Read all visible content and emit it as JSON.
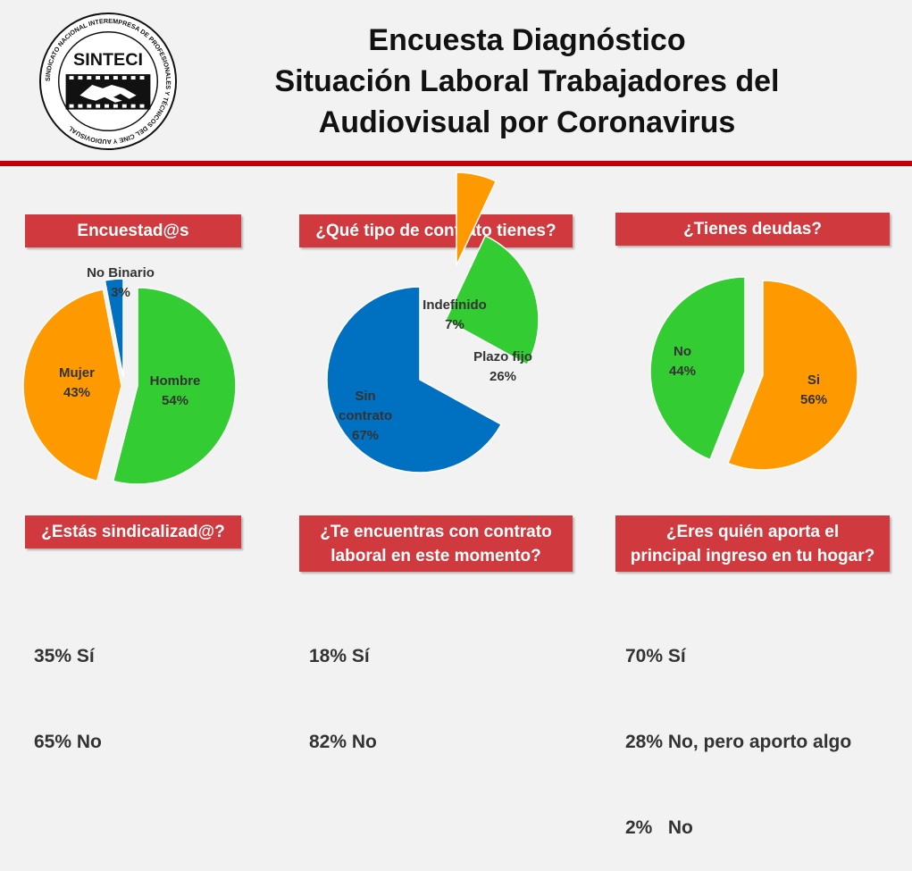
{
  "logo": {
    "name": "SINTECI",
    "ring_text": "SINDICATO NACIONAL INTEREMPRESA DE PROFESIONALES Y TÉCNICOS DEL CINE Y AUDIOVISUAL",
    "icon": "handshake-film-icon"
  },
  "title": {
    "line1": "Encuesta Diagnóstico",
    "line2": "Situación Laboral Trabajadores del",
    "line3": "Audiovisual por Coronavirus"
  },
  "colors": {
    "accent": "#c0000a",
    "header_box": "#d0393e",
    "green": "#33cc33",
    "orange": "#ff9900",
    "blue": "#0070c0"
  },
  "chart_data": [
    {
      "type": "pie",
      "title": "Encuestad@s",
      "categories": [
        "Hombre",
        "Mujer",
        "No Binario"
      ],
      "values": [
        54,
        43,
        3
      ],
      "label_texts": [
        "54%",
        "43%",
        "3%"
      ],
      "colors": [
        "#33cc33",
        "#ff9900",
        "#0070c0"
      ],
      "exploded": true
    },
    {
      "type": "pie",
      "title": "¿Qué tipo de contrato tienes?",
      "categories": [
        "Indefinido",
        "Plazo fijo",
        "Sin contrato"
      ],
      "values": [
        7,
        26,
        67
      ],
      "label_texts": [
        "7%",
        "26%",
        "67%"
      ],
      "colors": [
        "#ff9900",
        "#33cc33",
        "#0070c0"
      ],
      "exploded": true
    },
    {
      "type": "pie",
      "title": "¿Tienes deudas?",
      "categories": [
        "Si",
        "No"
      ],
      "values": [
        56,
        44
      ],
      "label_texts": [
        "56%",
        "44%"
      ],
      "colors": [
        "#ff9900",
        "#33cc33"
      ],
      "exploded": true
    }
  ],
  "questions": [
    {
      "title_lines": [
        "¿Estás sindicalizad@?"
      ],
      "answers": [
        "35% Sí",
        "65% No"
      ]
    },
    {
      "title_lines": [
        "¿Te encuentras con contrato",
        "laboral en este momento?"
      ],
      "answers": [
        "18% Sí",
        "82% No"
      ]
    },
    {
      "title_lines": [
        "¿Eres quién aporta el",
        "principal ingreso en tu hogar?"
      ],
      "answers": [
        "70% Sí",
        "28% No, pero aporto algo",
        "2%   No"
      ]
    }
  ]
}
